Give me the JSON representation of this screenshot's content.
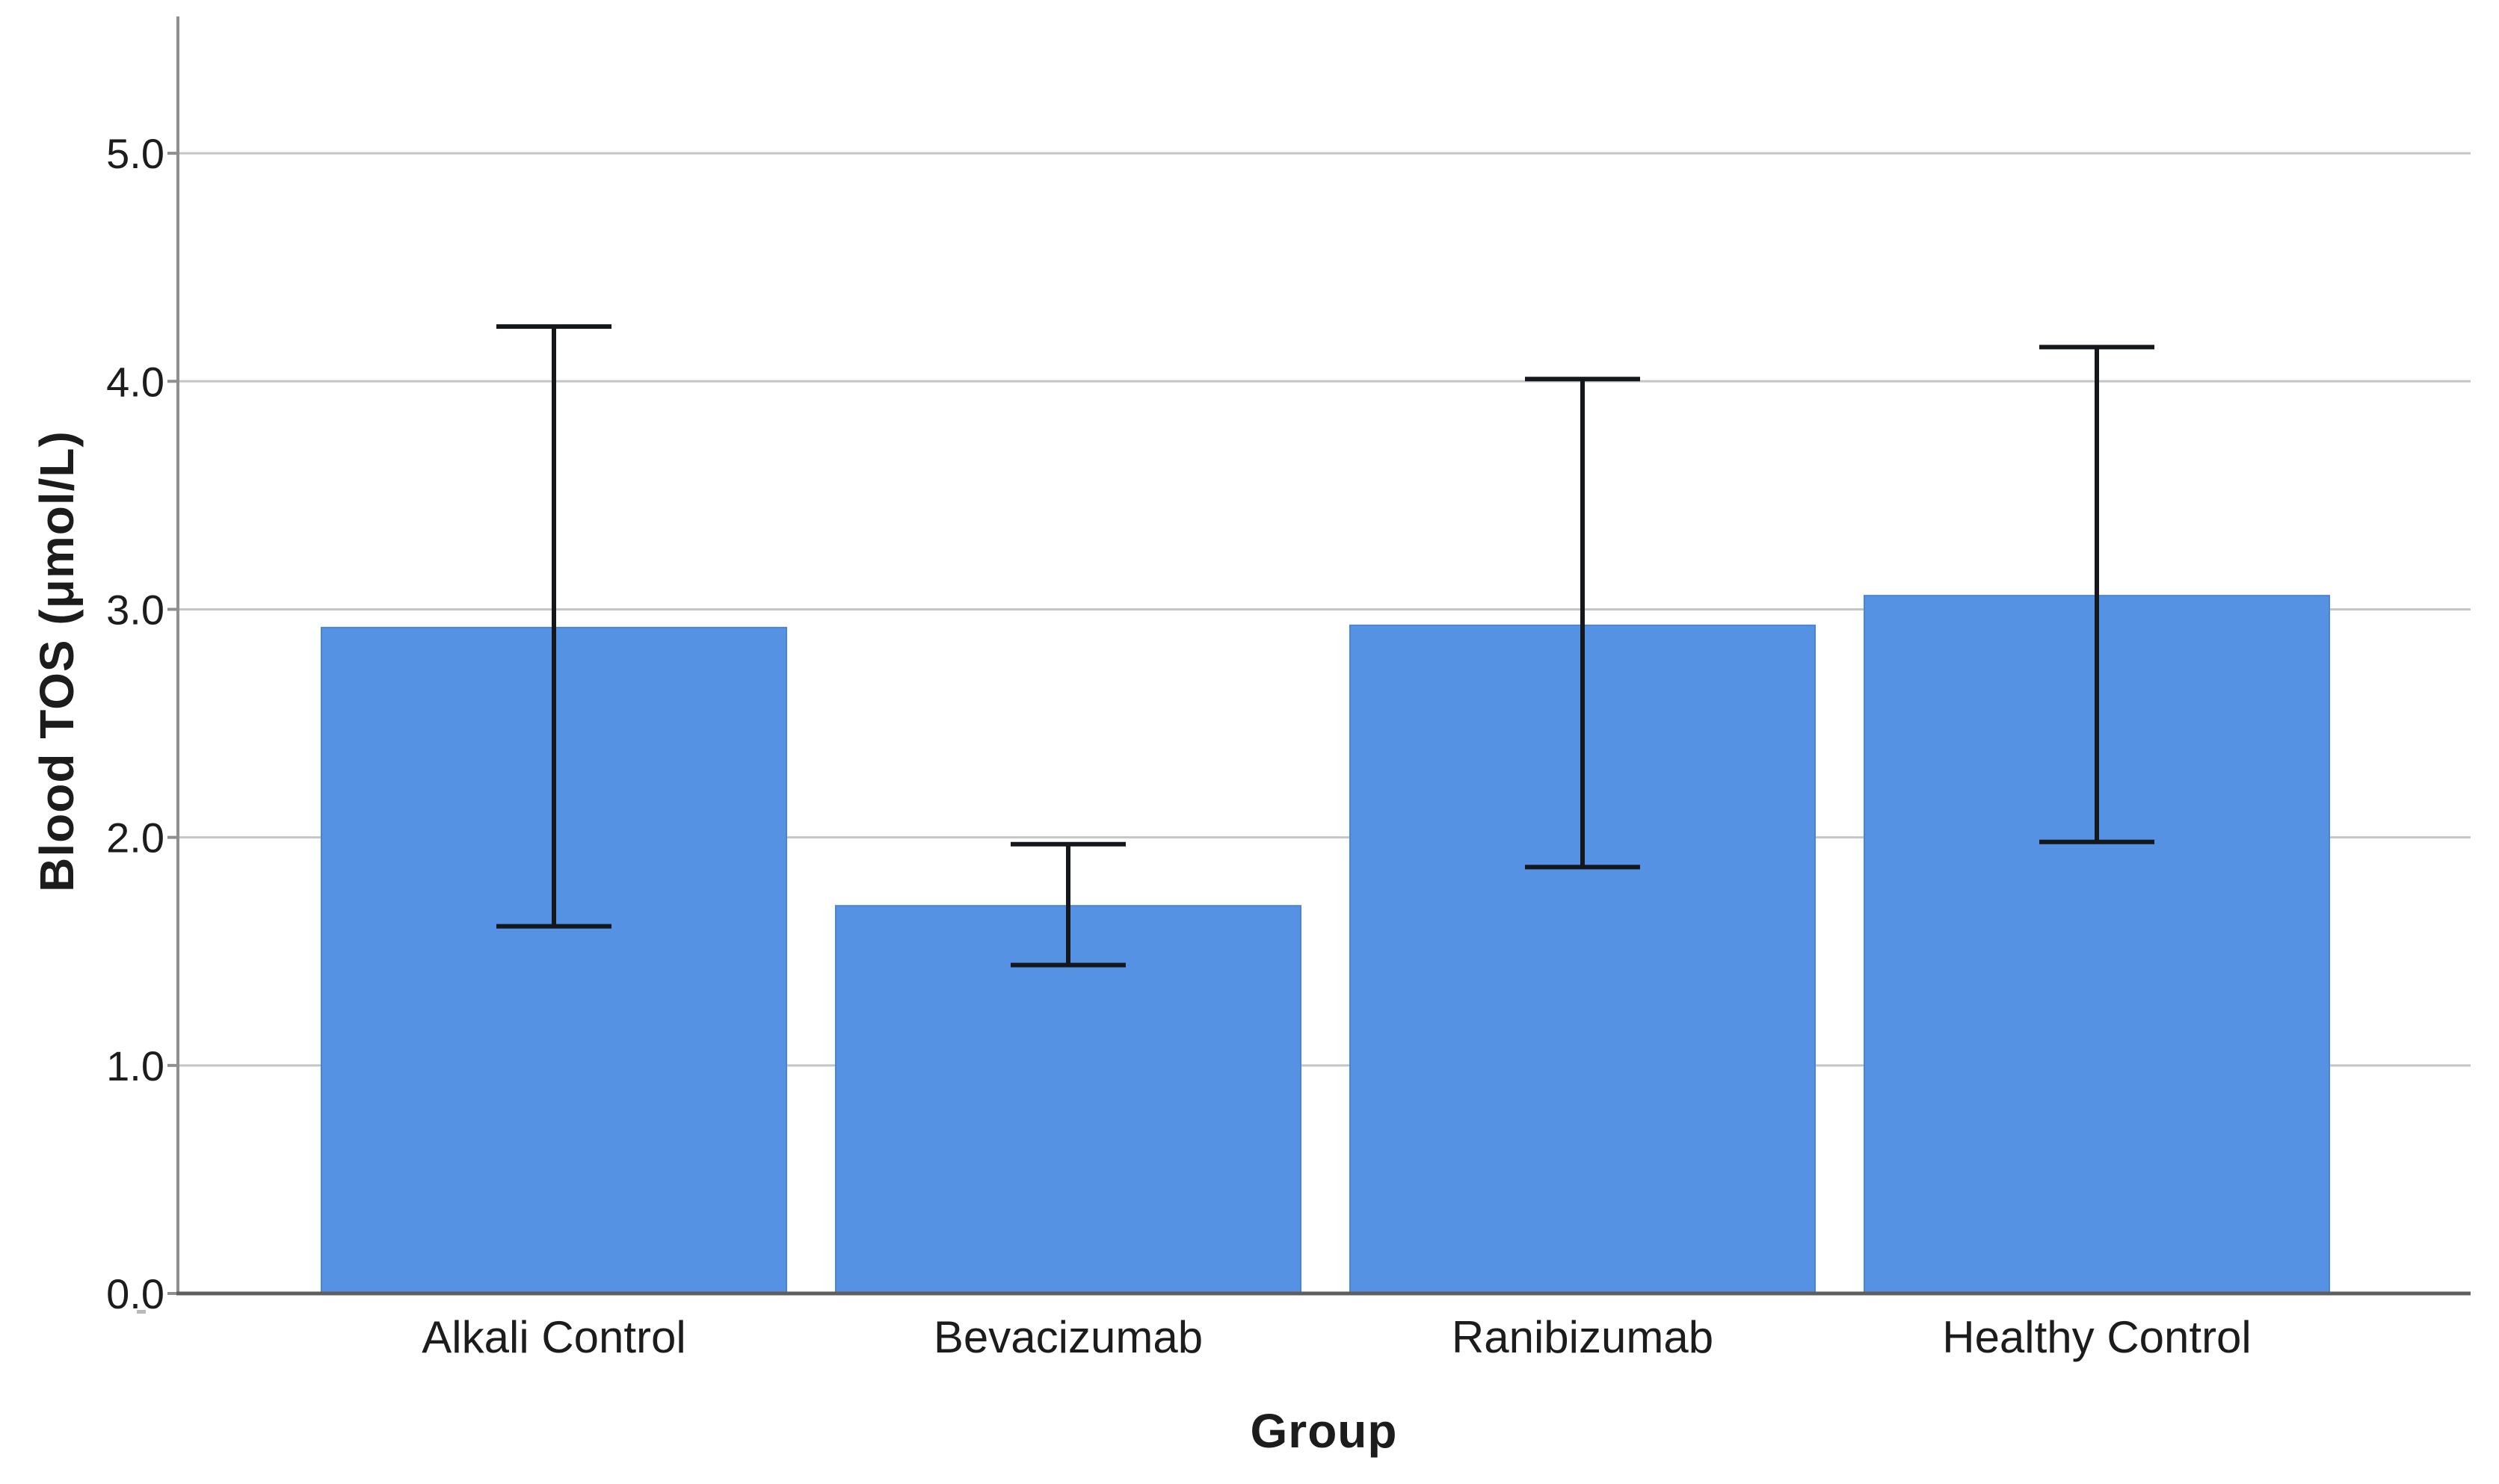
{
  "figure": {
    "background": "#ffffff"
  },
  "chart_data": {
    "type": "bar",
    "title": "",
    "categories": [
      "Alkali Control",
      "Bevacizumab",
      "Ranibizumab",
      "Healthy Control"
    ],
    "values": [
      2.92,
      1.7,
      2.93,
      3.06
    ],
    "error_low": [
      1.61,
      1.44,
      1.87,
      1.98
    ],
    "error_high": [
      4.24,
      1.97,
      4.01,
      4.15
    ],
    "xlabel": "Group",
    "ylabel": "Blood TOS (μmol/L)",
    "ytick_labels": [
      "0.0",
      "1.0",
      "2.0",
      "3.0",
      "4.0",
      "5.0"
    ],
    "ytick_values": [
      0,
      1,
      2,
      3,
      4,
      5
    ],
    "ylim": [
      0,
      5.6
    ],
    "grid": true,
    "legend": "none",
    "error_bars": "both-directions, flat caps",
    "colors": {
      "bar_fill": "#5592E3",
      "bar_edge": "#4B84D4",
      "error_line": "#14171C",
      "gridline": "#C5C5C5",
      "y_axis_line": "#8F8F8F",
      "x_axis_line": "#5F5F5F",
      "text": "#1C1C1C"
    }
  }
}
